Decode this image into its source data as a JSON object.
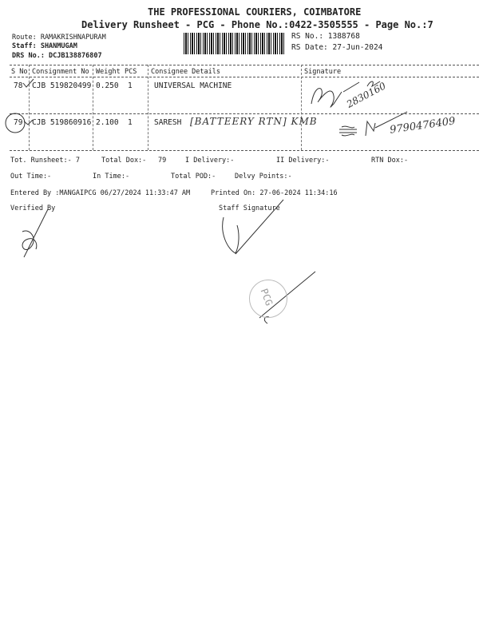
{
  "header": {
    "company": "THE PROFESSIONAL COURIERS, COIMBATORE",
    "subtitle": "Delivery Runsheet - PCG - Phone No.:0422-3505555 - Page No.:7",
    "route": "Route: RAMAKRISHNAPURAM",
    "staff": "Staff: SHANMUGAM",
    "drs_no": "DRS No.: DCJB138876807",
    "rs_no": "RS No.: 1388768",
    "rs_date": "RS Date: 27-Jun-2024"
  },
  "table": {
    "columns": [
      "S No",
      "Consignment No",
      "Weight",
      "PCS",
      "Consignee Details",
      "Signature"
    ],
    "rows": [
      {
        "sno": "78",
        "consignment": "CJB 519820499",
        "weight": "0.250",
        "pcs": "1",
        "consignee": "UNIVERSAL MACHINE",
        "handwritten_note": "",
        "signature_note": "2830160"
      },
      {
        "sno": "79",
        "consignment": "CJB 519860916",
        "weight": "2.100",
        "pcs": "1",
        "consignee": "SARESH",
        "handwritten_note": "[BATTEERY RTN] KMB",
        "signature_note": "9790476409"
      }
    ]
  },
  "summary": {
    "tot_runsheet": "Tot. Runsheet:- 7",
    "total_dox": "Total Dox:-",
    "total_dox_value": "79",
    "i_delivery": "I Delivery:-",
    "ii_delivery": "II Delivery:-",
    "rtn_dox": "RTN Dox:-",
    "out_time": "Out Time:-",
    "in_time": "In Time:-",
    "total_pod": "Total POD:-",
    "delvy_points": "Delvy Points:-",
    "entered_by": "Entered By :MANGAIPCG 06/27/2024 11:33:47 AM",
    "printed_on": "Printed On: 27-06-2024 11:34:16",
    "verified_by": "Verified By",
    "staff_signature": "Staff Signature"
  },
  "stamp": {
    "text": "PCG"
  }
}
